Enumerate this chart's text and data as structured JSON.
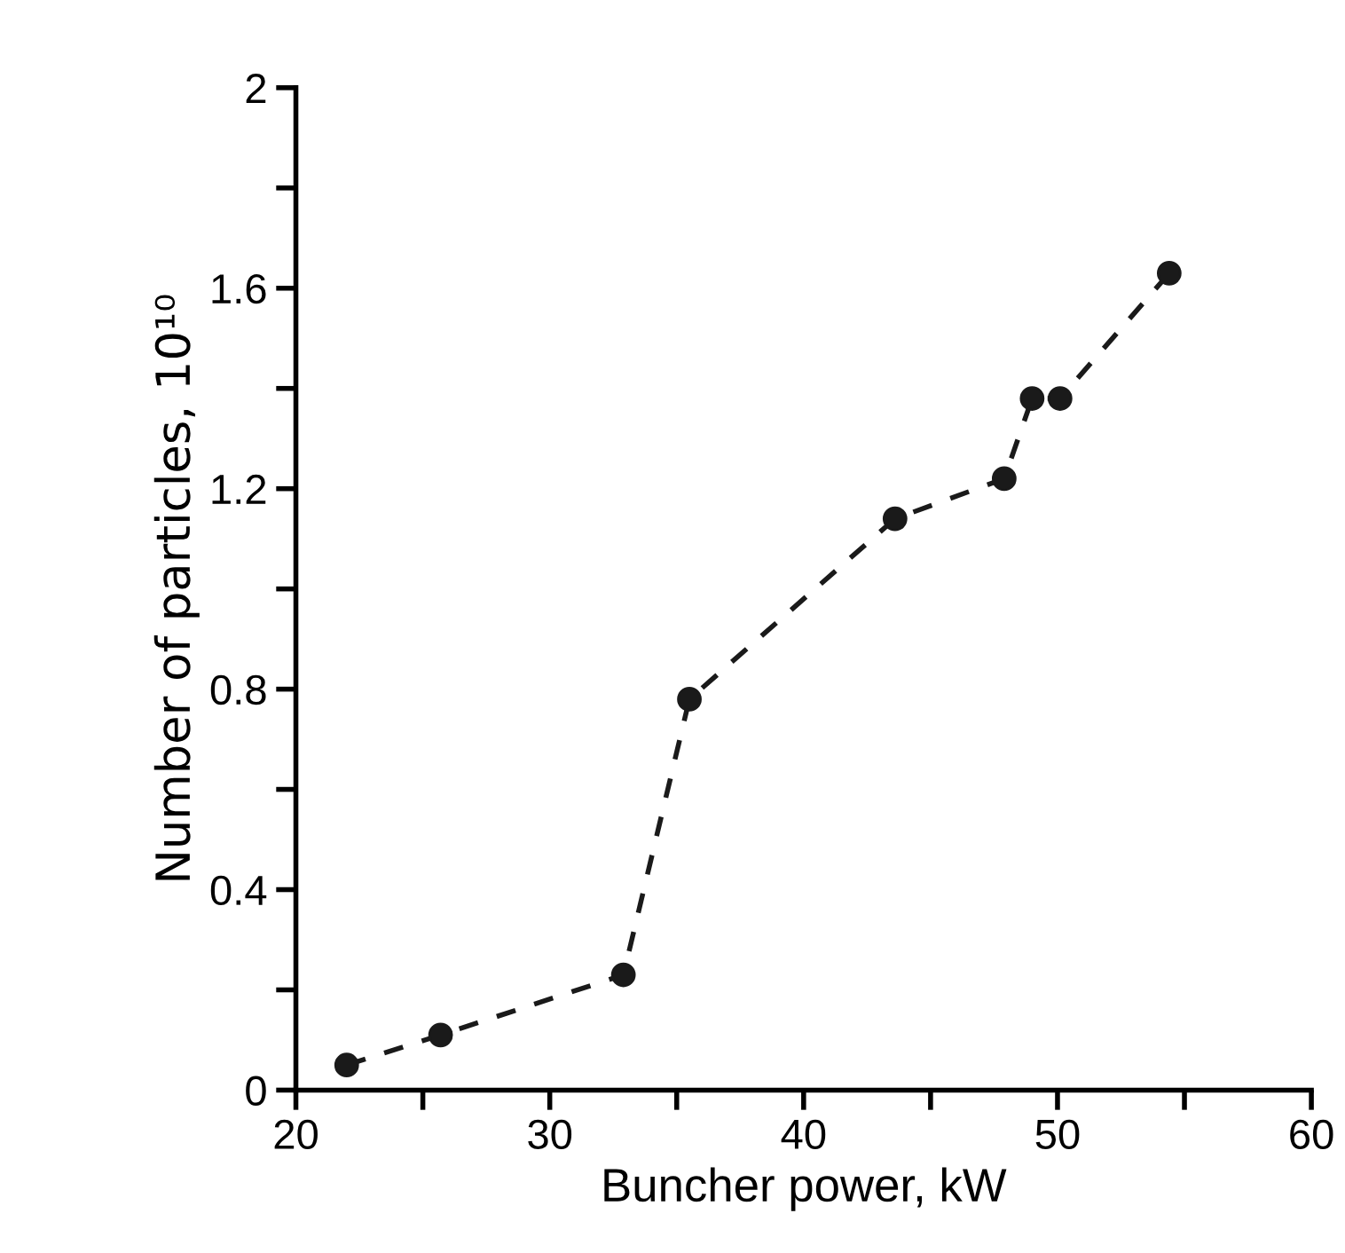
{
  "chart_data": {
    "type": "line",
    "xlabel": "Buncher power, kW",
    "ylabel": "Number of particles, 10¹⁰",
    "x": [
      22.0,
      25.7,
      32.9,
      35.5,
      43.6,
      47.9,
      49.0,
      50.1,
      54.4
    ],
    "series": [
      {
        "color": "#1a1a1a",
        "values": [
          0.05,
          0.11,
          0.23,
          0.78,
          1.14,
          1.22,
          1.38,
          1.38,
          1.63
        ]
      }
    ],
    "marker": "circle",
    "line_style": "dashed",
    "grid": false,
    "legend": false,
    "xlim": [
      20,
      60
    ],
    "ylim": [
      0,
      2
    ],
    "xticks": [
      20,
      {
        "value": 25,
        "label": null
      },
      30,
      {
        "value": 35,
        "label": null
      },
      40,
      {
        "value": 45,
        "label": null
      },
      50,
      {
        "value": 55,
        "label": null
      },
      60
    ],
    "yticks": [
      0,
      {
        "value": 0.2,
        "label": null
      },
      0.4,
      {
        "value": 0.6,
        "label": null
      },
      0.8,
      {
        "value": 1.0,
        "label": null
      },
      1.2,
      {
        "value": 1.4,
        "label": null
      },
      1.6,
      {
        "value": 1.8,
        "label": null
      },
      2
    ]
  }
}
